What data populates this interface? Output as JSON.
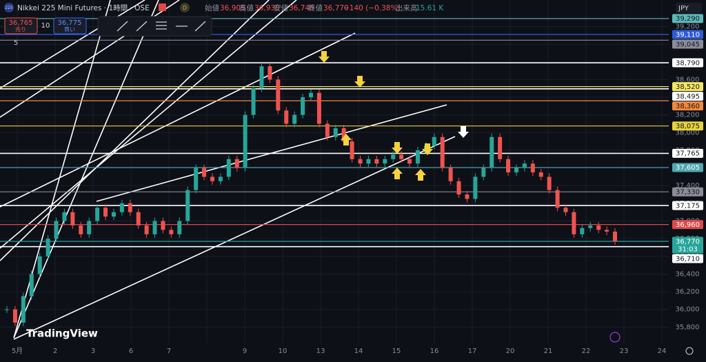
{
  "header": {
    "logo": "225",
    "symbol": "Nikkei 225 Mini Futures · 1時間 · OSE",
    "badge": "D",
    "ohlc": [
      {
        "label": "始値",
        "value": "36,905"
      },
      {
        "label": "高値",
        "value": "36,930"
      },
      {
        "label": "安値",
        "value": "36,745"
      },
      {
        "label": "終値",
        "value": "36,770"
      }
    ],
    "change": "−140 (−0.38%)",
    "volume_label": "出来高",
    "volume": "15.61 K"
  },
  "trade": {
    "sell_price": "36,765",
    "sell_label": "売り",
    "quantity": "10",
    "buy_price": "36,775",
    "buy_label": "買い"
  },
  "indicator_count": "5",
  "currency": "JPY",
  "logo_text": "TradingView",
  "price_axis": {
    "ylim": [
      35600,
      39500
    ],
    "yticks": [
      {
        "value": 35800,
        "label": "35,800"
      },
      {
        "value": 36000,
        "label": "36,000"
      },
      {
        "value": 36200,
        "label": "36,200"
      },
      {
        "value": 36400,
        "label": "36,400"
      },
      {
        "value": 36600,
        "label": "36,600"
      },
      {
        "value": 36800,
        "label": "36,800"
      },
      {
        "value": 37000,
        "label": "37,000"
      },
      {
        "value": 37200,
        "label": "37,200"
      },
      {
        "value": 37400,
        "label": "37,400"
      },
      {
        "value": 37600,
        "label": "37,600"
      },
      {
        "value": 37800,
        "label": "37,800"
      },
      {
        "value": 38000,
        "label": "38,000"
      },
      {
        "value": 38200,
        "label": "38,200"
      },
      {
        "value": 38400,
        "label": "38,400"
      },
      {
        "value": 38600,
        "label": "38,600"
      },
      {
        "value": 38800,
        "label": "38,800"
      },
      {
        "value": 39000,
        "label": "39,000"
      },
      {
        "value": 39200,
        "label": "39,200"
      }
    ]
  },
  "time_axis": {
    "categories": [
      "5月",
      "2",
      "3",
      "6",
      "7",
      null,
      "9",
      "10",
      "13",
      "14",
      "15",
      "16",
      "17",
      "20",
      "21",
      "22",
      "23",
      "24"
    ]
  },
  "levels": [
    {
      "value": 39290,
      "label": "39,290",
      "color": "#5fb8b8"
    },
    {
      "value": 39110,
      "label": "39,110",
      "color": "#2f5bd8"
    },
    {
      "value": 39045,
      "label": "39,045",
      "color": "#8a8d96"
    },
    {
      "value": 38790,
      "label": "38,790",
      "color": "#ffffff"
    },
    {
      "value": 38520,
      "label": "38,520",
      "color": "#f5e663"
    },
    {
      "value": 38495,
      "label": "38,495",
      "color": "#ffffff"
    },
    {
      "value": 38360,
      "label": "38,360",
      "color": "#f08a3c"
    },
    {
      "value": 38075,
      "label": "38,075",
      "color": "#e8d23c"
    },
    {
      "value": 37765,
      "label": "37,765",
      "color": "#ffffff"
    },
    {
      "value": 37605,
      "label": "37,605",
      "color": "#4fa8b0"
    },
    {
      "value": 37330,
      "label": "37,330",
      "color": "#8a8d96"
    },
    {
      "value": 37175,
      "label": "37,175",
      "color": "#ffffff"
    },
    {
      "value": 36960,
      "label": "36,960",
      "color": "#e04848"
    },
    {
      "value": 36770,
      "label": "36,770",
      "sublabel": "31:03",
      "color": "#26a69a"
    },
    {
      "value": 36710,
      "label": "36,710",
      "color": "#ffffff"
    }
  ],
  "closes": [
    36000,
    35850,
    36150,
    36400,
    36600,
    36800,
    37000,
    37100,
    36950,
    36850,
    37000,
    37150,
    37050,
    37100,
    37200,
    37100,
    36950,
    36850,
    37000,
    36900,
    36850,
    37000,
    37350,
    37600,
    37500,
    37450,
    37500,
    37700,
    37600,
    38200,
    38500,
    38750,
    38600,
    38250,
    38100,
    38200,
    38400,
    38450,
    38100,
    37950,
    38050,
    37900,
    37700,
    37650,
    37700,
    37650,
    37700,
    37750,
    37700,
    37650,
    37800,
    37850,
    37950,
    37600,
    37450,
    37300,
    37250,
    37500,
    37600,
    37950,
    37700,
    37550,
    37600,
    37650,
    37550,
    37500,
    37350,
    37150,
    37100,
    36850,
    36920,
    36950,
    36900,
    36880,
    36770
  ]
}
